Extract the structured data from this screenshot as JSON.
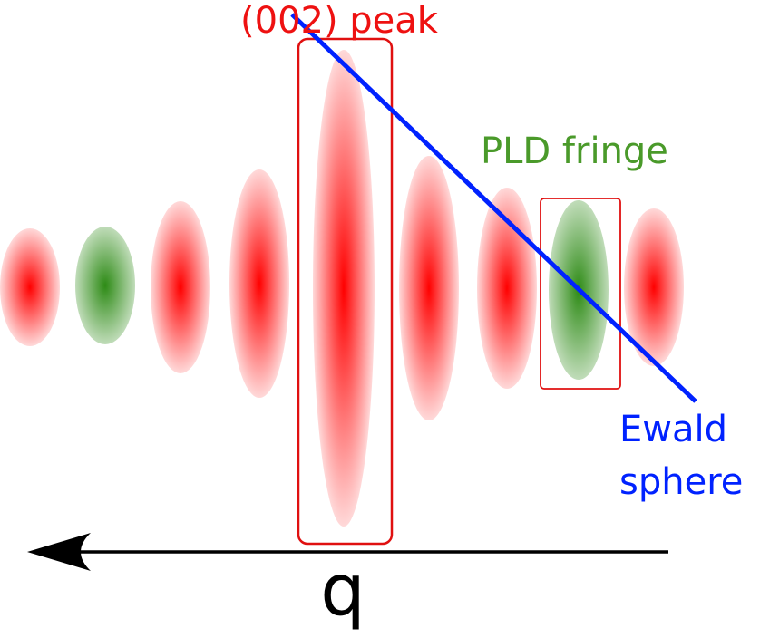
{
  "labels": {
    "peak": "(002) peak",
    "fringe": "PLD fringe",
    "ewald_line1": "Ewald",
    "ewald_line2": "sphere",
    "axis": "q"
  },
  "colors": {
    "red": "#ff0000",
    "green": "#2e8b16",
    "fringe_text": "#4a9a2a",
    "ewald": "#0022ff",
    "box": "#e01010",
    "axis": "#000000"
  },
  "spots": [
    {
      "name": "spot-red-1",
      "color": "red"
    },
    {
      "name": "spot-green-1",
      "color": "green"
    },
    {
      "name": "spot-red-2",
      "color": "red"
    },
    {
      "name": "spot-red-3",
      "color": "red"
    },
    {
      "name": "spot-red-peak-002",
      "color": "red"
    },
    {
      "name": "spot-red-4",
      "color": "red"
    },
    {
      "name": "spot-red-5",
      "color": "red"
    },
    {
      "name": "spot-green-pld",
      "color": "green"
    },
    {
      "name": "spot-red-6",
      "color": "red"
    }
  ]
}
